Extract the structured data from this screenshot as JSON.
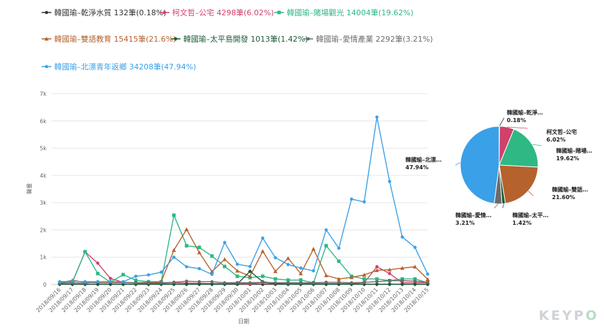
{
  "legend": [
    {
      "label": "韓國瑜–乾淨水質 132筆(0.18%)",
      "color": "#333333"
    },
    {
      "label": "柯文哲–公宅 4298筆(6.02%)",
      "color": "#d0416b"
    },
    {
      "label": "韓國瑜–賭場觀光 14004筆(19.62%)",
      "color": "#2fb784"
    },
    {
      "label": "韓國瑜–雙語教育 15415筆(21.6%)",
      "color": "#b5622c"
    },
    {
      "label": "韓國瑜–太平島開發 1013筆(1.42%)",
      "color": "#1a5a38"
    },
    {
      "label": "韓國瑜–愛情產業 2292筆(3.21%)",
      "color": "#6b6b6b"
    },
    {
      "label": "韓國瑜–北漂青年返鄉 34208筆(47.94%)",
      "color": "#3aa0e8"
    }
  ],
  "chart_data": [
    {
      "type": "line",
      "title": "",
      "xlabel": "日期",
      "ylabel": "聲量",
      "ylim": [
        0,
        7000
      ],
      "yticks": [
        "0",
        "1k",
        "2k",
        "3k",
        "4k",
        "5k",
        "6k",
        "7k"
      ],
      "grid": true,
      "categories": [
        "2018/09/16",
        "2018/09/17",
        "2018/09/18",
        "2018/09/19",
        "2018/09/20",
        "2018/09/21",
        "2018/09/22",
        "2018/09/23",
        "2018/09/24",
        "2018/09/25",
        "2018/09/26",
        "2018/09/27",
        "2018/09/28",
        "2018/09/29",
        "2018/09/30",
        "2018/10/01",
        "2018/10/02",
        "2018/10/03",
        "2018/10/04",
        "2018/10/05",
        "2018/10/06",
        "2018/10/07",
        "2018/10/08",
        "2018/10/09",
        "2018/10/10",
        "2018/10/11",
        "2018/10/12",
        "2018/10/13",
        "2018/10/14",
        "2018/10/15"
      ],
      "series": [
        {
          "name": "韓國瑜–乾淨水質",
          "color": "#333333",
          "marker": "circle",
          "values": [
            5,
            5,
            5,
            5,
            5,
            5,
            5,
            5,
            5,
            5,
            5,
            5,
            5,
            5,
            5,
            5,
            5,
            5,
            5,
            5,
            5,
            5,
            5,
            5,
            5,
            5,
            5,
            5,
            5,
            5
          ]
        },
        {
          "name": "柯文哲–公宅",
          "color": "#d0416b",
          "marker": "circle",
          "values": [
            60,
            90,
            1200,
            780,
            220,
            80,
            50,
            40,
            40,
            60,
            50,
            40,
            30,
            30,
            30,
            30,
            60,
            30,
            30,
            30,
            30,
            30,
            30,
            30,
            60,
            650,
            400,
            60,
            60,
            60
          ]
        },
        {
          "name": "韓國瑜–賭場觀光",
          "color": "#2fb784",
          "marker": "square",
          "values": [
            60,
            80,
            1200,
            400,
            80,
            360,
            150,
            100,
            100,
            2540,
            1420,
            1360,
            1040,
            660,
            300,
            250,
            300,
            200,
            160,
            160,
            60,
            1420,
            850,
            300,
            200,
            200,
            140,
            200,
            200,
            60
          ]
        },
        {
          "name": "韓國瑜–雙語教育",
          "color": "#b5622c",
          "marker": "triangle",
          "values": [
            60,
            150,
            80,
            60,
            60,
            60,
            60,
            80,
            100,
            1260,
            2020,
            1170,
            470,
            920,
            500,
            300,
            1220,
            480,
            960,
            400,
            1300,
            330,
            200,
            260,
            350,
            520,
            540,
            600,
            650,
            190
          ]
        },
        {
          "name": "韓國瑜–太平島開發",
          "color": "#1a5a38",
          "marker": "diamond",
          "values": [
            10,
            10,
            10,
            10,
            10,
            10,
            10,
            10,
            10,
            10,
            10,
            10,
            10,
            10,
            20,
            480,
            100,
            30,
            10,
            10,
            10,
            10,
            10,
            10,
            10,
            10,
            10,
            10,
            10,
            10
          ]
        },
        {
          "name": "韓國瑜–愛情產業",
          "color": "#6b6b6b",
          "marker": "circle",
          "values": [
            40,
            60,
            50,
            100,
            100,
            80,
            60,
            60,
            60,
            80,
            120,
            100,
            100,
            60,
            70,
            60,
            80,
            60,
            60,
            60,
            60,
            80,
            80,
            60,
            80,
            100,
            140,
            140,
            120,
            80
          ]
        },
        {
          "name": "韓國瑜–北漂青年返鄉",
          "color": "#3aa0e8",
          "marker": "circle",
          "values": [
            100,
            120,
            100,
            100,
            100,
            100,
            300,
            350,
            450,
            1000,
            650,
            580,
            370,
            1540,
            740,
            660,
            1700,
            980,
            730,
            600,
            500,
            2000,
            1330,
            3130,
            3030,
            6140,
            3780,
            1740,
            1360,
            380
          ]
        }
      ]
    },
    {
      "type": "pie",
      "slices": [
        {
          "name": "韓國瑜–乾淨水質",
          "value": 0.18,
          "label": "韓國瑜–乾淨…",
          "pct": "0.18%",
          "color": "#333333"
        },
        {
          "name": "柯文哲–公宅",
          "value": 6.02,
          "label": "柯文哲–公宅",
          "pct": "6.02%",
          "color": "#d0416b"
        },
        {
          "name": "韓國瑜–賭場觀光",
          "value": 19.62,
          "label": "韓國瑜–賭場…",
          "pct": "19.62%",
          "color": "#2fb784"
        },
        {
          "name": "韓國瑜–雙語教育",
          "value": 21.6,
          "label": "韓國瑜–雙語…",
          "pct": "21.60%",
          "color": "#b5622c"
        },
        {
          "name": "韓國瑜–太平島開發",
          "value": 1.42,
          "label": "韓國瑜–太平…",
          "pct": "1.42%",
          "color": "#1a5a38"
        },
        {
          "name": "韓國瑜–愛情產業",
          "value": 3.21,
          "label": "韓國瑜–愛情…",
          "pct": "3.21%",
          "color": "#6b6b6b"
        },
        {
          "name": "韓國瑜–北漂青年返鄉",
          "value": 47.94,
          "label": "韓國瑜–北漂…",
          "pct": "47.94%",
          "color": "#3aa0e8"
        }
      ]
    }
  ],
  "watermark": {
    "prefix": "KEYP",
    "accent": "O"
  }
}
